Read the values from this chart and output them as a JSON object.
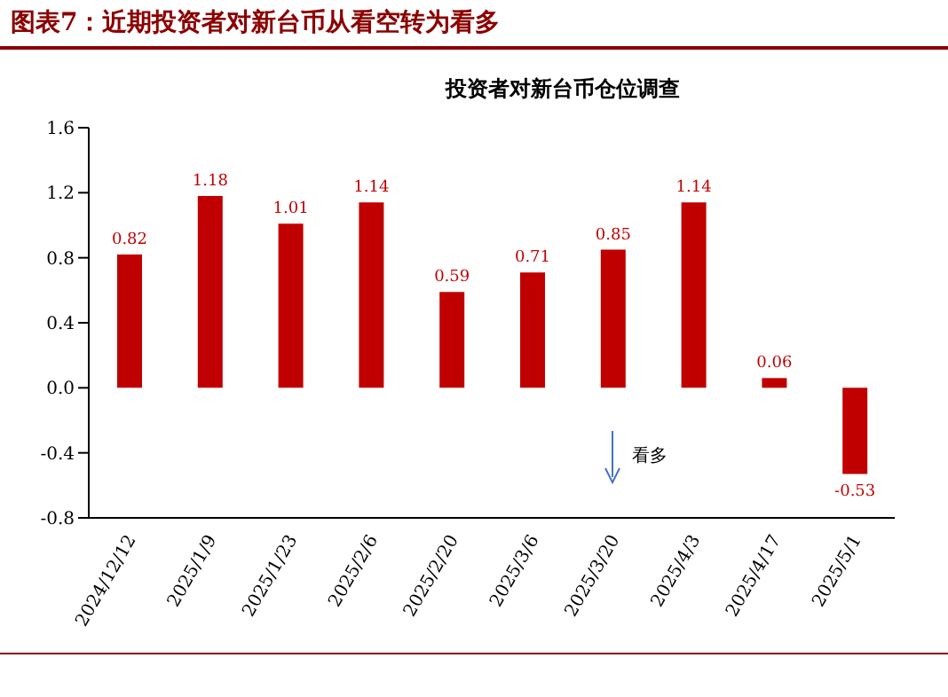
{
  "chart_data": {
    "type": "bar",
    "title": "图表7：近期投资者对新台币从看空转为看多",
    "subtitle": "投资者对新台币仓位调查",
    "categories": [
      "2024/12/12",
      "2025/1/9",
      "2025/1/23",
      "2025/2/6",
      "2025/2/20",
      "2025/3/6",
      "2025/3/20",
      "2025/4/3",
      "2025/4/17",
      "2025/5/1"
    ],
    "values": [
      0.82,
      1.18,
      1.01,
      1.14,
      0.59,
      0.71,
      0.85,
      1.14,
      0.06,
      -0.53
    ],
    "color": "#c00000",
    "data_labels": true,
    "ylim": [
      -0.8,
      1.6
    ],
    "yticks": [
      -0.8,
      -0.4,
      {
        "value": 0,
        "label": "0.0"
      },
      0.4,
      0.8,
      1.2,
      1.6
    ],
    "annotations": [
      "看多"
    ]
  }
}
